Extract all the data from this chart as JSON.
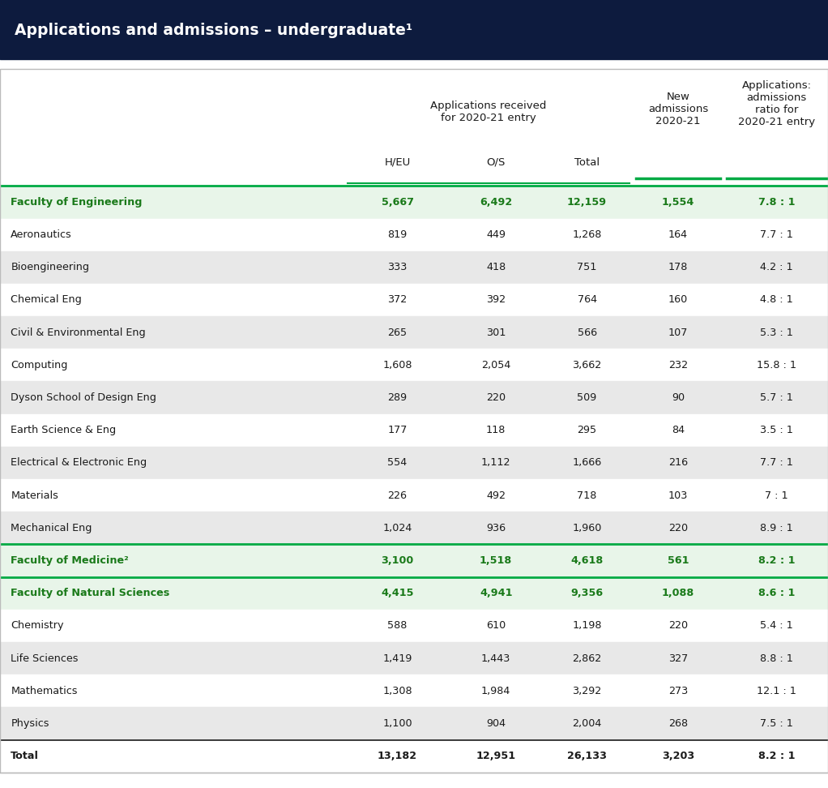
{
  "title": "Applications and admissions – undergraduate¹",
  "col_headers": {
    "group1": "Applications received\nfor 2020-21 entry",
    "sub1": "H/EU",
    "sub2": "O/S",
    "sub3": "Total",
    "col4": "New\nadmissions\n2020-21",
    "col5": "Applications:\nadmissions\nratio for\n2020-21 entry"
  },
  "rows": [
    {
      "name": "Faculty of Engineering",
      "heu": "5,667",
      "os": "6,492",
      "total": "12,159",
      "new_adm": "1,554",
      "ratio": "7.8 : 1",
      "faculty": true,
      "shade": "light_green"
    },
    {
      "name": "Aeronautics",
      "heu": "819",
      "os": "449",
      "total": "1,268",
      "new_adm": "164",
      "ratio": "7.7 : 1",
      "faculty": false,
      "shade": "white"
    },
    {
      "name": "Bioengineering",
      "heu": "333",
      "os": "418",
      "total": "751",
      "new_adm": "178",
      "ratio": "4.2 : 1",
      "faculty": false,
      "shade": "light_gray"
    },
    {
      "name": "Chemical Eng",
      "heu": "372",
      "os": "392",
      "total": "764",
      "new_adm": "160",
      "ratio": "4.8 : 1",
      "faculty": false,
      "shade": "white"
    },
    {
      "name": "Civil & Environmental Eng",
      "heu": "265",
      "os": "301",
      "total": "566",
      "new_adm": "107",
      "ratio": "5.3 : 1",
      "faculty": false,
      "shade": "light_gray"
    },
    {
      "name": "Computing",
      "heu": "1,608",
      "os": "2,054",
      "total": "3,662",
      "new_adm": "232",
      "ratio": "15.8 : 1",
      "faculty": false,
      "shade": "white"
    },
    {
      "name": "Dyson School of Design Eng",
      "heu": "289",
      "os": "220",
      "total": "509",
      "new_adm": "90",
      "ratio": "5.7 : 1",
      "faculty": false,
      "shade": "light_gray"
    },
    {
      "name": "Earth Science & Eng",
      "heu": "177",
      "os": "118",
      "total": "295",
      "new_adm": "84",
      "ratio": "3.5 : 1",
      "faculty": false,
      "shade": "white"
    },
    {
      "name": "Electrical & Electronic Eng",
      "heu": "554",
      "os": "1,112",
      "total": "1,666",
      "new_adm": "216",
      "ratio": "7.7 : 1",
      "faculty": false,
      "shade": "light_gray"
    },
    {
      "name": "Materials",
      "heu": "226",
      "os": "492",
      "total": "718",
      "new_adm": "103",
      "ratio": "7 : 1",
      "faculty": false,
      "shade": "white"
    },
    {
      "name": "Mechanical Eng",
      "heu": "1,024",
      "os": "936",
      "total": "1,960",
      "new_adm": "220",
      "ratio": "8.9 : 1",
      "faculty": false,
      "shade": "light_gray"
    },
    {
      "name": "Faculty of Medicine²",
      "heu": "3,100",
      "os": "1,518",
      "total": "4,618",
      "new_adm": "561",
      "ratio": "8.2 : 1",
      "faculty": true,
      "shade": "light_green"
    },
    {
      "name": "Faculty of Natural Sciences",
      "heu": "4,415",
      "os": "4,941",
      "total": "9,356",
      "new_adm": "1,088",
      "ratio": "8.6 : 1",
      "faculty": true,
      "shade": "light_green"
    },
    {
      "name": "Chemistry",
      "heu": "588",
      "os": "610",
      "total": "1,198",
      "new_adm": "220",
      "ratio": "5.4 : 1",
      "faculty": false,
      "shade": "white"
    },
    {
      "name": "Life Sciences",
      "heu": "1,419",
      "os": "1,443",
      "total": "2,862",
      "new_adm": "327",
      "ratio": "8.8 : 1",
      "faculty": false,
      "shade": "light_gray"
    },
    {
      "name": "Mathematics",
      "heu": "1,308",
      "os": "1,984",
      "total": "3,292",
      "new_adm": "273",
      "ratio": "12.1 : 1",
      "faculty": false,
      "shade": "white"
    },
    {
      "name": "Physics",
      "heu": "1,100",
      "os": "904",
      "total": "2,004",
      "new_adm": "268",
      "ratio": "7.5 : 1",
      "faculty": false,
      "shade": "light_gray"
    },
    {
      "name": "Total",
      "heu": "13,182",
      "os": "12,951",
      "total": "26,133",
      "new_adm": "3,203",
      "ratio": "8.2 : 1",
      "faculty": false,
      "shade": "white",
      "total_row": true
    }
  ],
  "colors": {
    "title_bg": "#0d1b3e",
    "title_fg": "#ffffff",
    "faculty_green": "#1a7a1a",
    "faculty_bg": "#e8f5e9",
    "row_white": "#ffffff",
    "row_gray": "#e8e8e8",
    "green_line": "#00aa44",
    "text_dark": "#1a1a1a",
    "header_line": "#00aa44",
    "border_color": "#bbbbbb"
  }
}
